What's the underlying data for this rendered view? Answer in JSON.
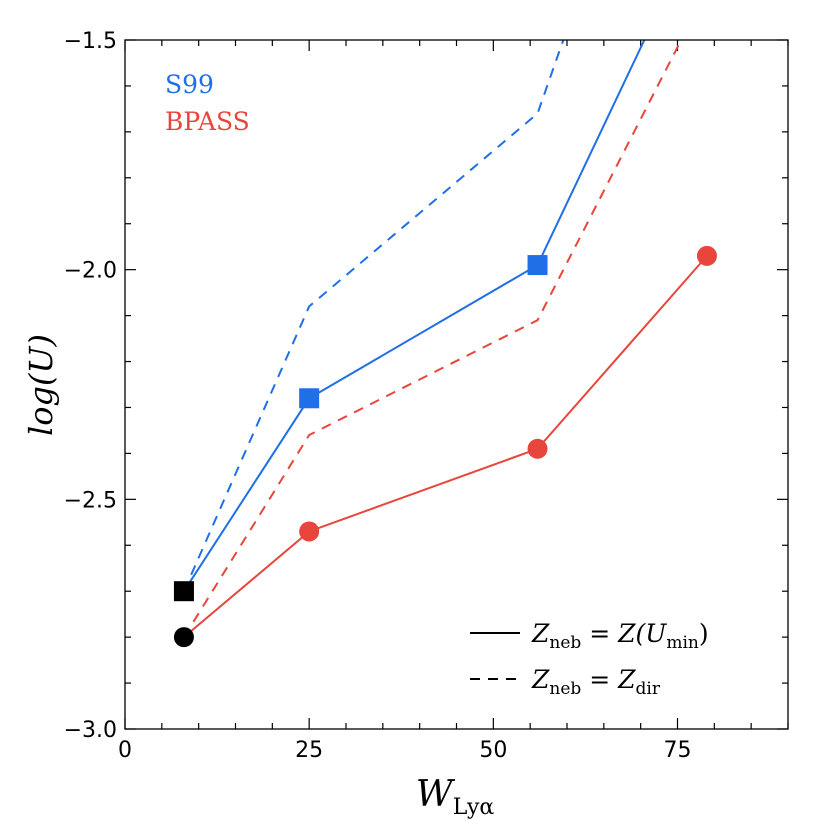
{
  "chart_data": {
    "type": "line",
    "title": "",
    "xlabel": "W",
    "xlabel_sub": "Lyα",
    "ylabel_prefix": "log(",
    "ylabel_var": "U",
    "ylabel_suffix": ")",
    "xlim": [
      0,
      90
    ],
    "ylim": [
      -3.0,
      -1.5
    ],
    "xticks": [
      0,
      25,
      50,
      75
    ],
    "xtick_labels": [
      "0",
      "25",
      "50",
      "75"
    ],
    "yticks": [
      -3.0,
      -2.5,
      -2.0,
      -1.5
    ],
    "ytick_labels": [
      "−3.0",
      "−2.5",
      "−2.0",
      "−1.5"
    ],
    "x_minor_step": 5,
    "y_minor_step": 0.1,
    "grid": false,
    "series_labels": [
      {
        "name": "S99",
        "color": "#1f6fe6"
      },
      {
        "name": "BPASS",
        "color": "#e8463c"
      }
    ],
    "series": [
      {
        "name": "S99 Z_neb = Z(U_min)",
        "model": "S99",
        "style": "solid",
        "color": "#1f6fe6",
        "x": [
          8,
          25,
          56,
          70.5
        ],
        "y": [
          -2.7,
          -2.28,
          -1.99,
          -1.5
        ]
      },
      {
        "name": "S99 Z_neb = Z_dir",
        "model": "S99",
        "style": "dashed",
        "color": "#1f6fe6",
        "x": [
          8,
          25,
          56,
          59.5
        ],
        "y": [
          -2.7,
          -2.08,
          -1.66,
          -1.5
        ]
      },
      {
        "name": "BPASS Z_neb = Z(U_min)",
        "model": "BPASS",
        "style": "solid",
        "color": "#e8463c",
        "x": [
          8,
          25,
          56,
          79
        ],
        "y": [
          -2.8,
          -2.57,
          -2.39,
          -1.97
        ]
      },
      {
        "name": "BPASS Z_neb = Z_dir",
        "model": "BPASS",
        "style": "dashed",
        "color": "#e8463c",
        "x": [
          8,
          25,
          56,
          75.5
        ],
        "y": [
          -2.8,
          -2.36,
          -2.11,
          -1.5
        ]
      }
    ],
    "markers": [
      {
        "name": "s99-marker",
        "shape": "square",
        "color": "#1f6fe6",
        "x": [
          25,
          56
        ],
        "y": [
          -2.28,
          -1.99
        ]
      },
      {
        "name": "bpass-marker",
        "shape": "circle",
        "color": "#e8463c",
        "x": [
          25,
          56,
          79
        ],
        "y": [
          -2.57,
          -2.39,
          -1.97
        ]
      },
      {
        "name": "reference-square",
        "shape": "square",
        "color": "#000000",
        "x": [
          8
        ],
        "y": [
          -2.7
        ]
      },
      {
        "name": "reference-circle",
        "shape": "circle",
        "color": "#000000",
        "x": [
          8
        ],
        "y": [
          -2.8
        ]
      }
    ],
    "legend": {
      "location": "lower-right",
      "entries": [
        {
          "style": "solid",
          "Z": "Z",
          "sub1": "neb",
          "eq": " = ",
          "rhs": "Z(U",
          "sub2": "min",
          "close": ")"
        },
        {
          "style": "dashed",
          "Z": "Z",
          "sub1": "neb",
          "eq": " = ",
          "rhs": "Z",
          "sub2": "dir",
          "close": ""
        }
      ]
    }
  }
}
